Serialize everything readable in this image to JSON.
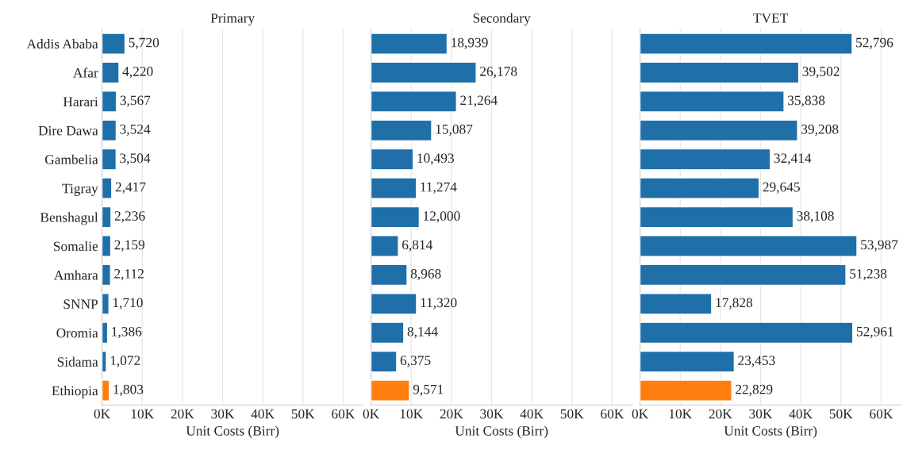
{
  "chart_data": [
    {
      "type": "bar",
      "orientation": "horizontal",
      "title": "Primary",
      "xlabel": "Unit Costs (Birr)",
      "categories": [
        "Addis Ababa",
        "Afar",
        "Harari",
        "Dire Dawa",
        "Gambelia",
        "Tigray",
        "Benshagul",
        "Somalie",
        "Amhara",
        "SNNP",
        "Oromia",
        "Sidama",
        "Ethiopia"
      ],
      "values": [
        5720,
        4220,
        3567,
        3524,
        3504,
        2417,
        2236,
        2159,
        2112,
        1710,
        1386,
        1072,
        1803
      ],
      "value_labels": [
        "5,720",
        "4,220",
        "3,567",
        "3,524",
        "3,504",
        "2,417",
        "2,236",
        "2,159",
        "2,112",
        "1,710",
        "1,386",
        "1,072",
        "1,803"
      ],
      "colors": [
        "#1f6fa8",
        "#1f6fa8",
        "#1f6fa8",
        "#1f6fa8",
        "#1f6fa8",
        "#1f6fa8",
        "#1f6fa8",
        "#1f6fa8",
        "#1f6fa8",
        "#1f6fa8",
        "#1f6fa8",
        "#1f6fa8",
        "#ff7f0e"
      ],
      "xlim": [
        0,
        65000
      ],
      "xticks": [
        {
          "value": 0,
          "label": "0K"
        },
        {
          "value": 10000,
          "label": "10K"
        },
        {
          "value": 20000,
          "label": "20K"
        },
        {
          "value": 30000,
          "label": "30K"
        },
        {
          "value": 40000,
          "label": "40K"
        },
        {
          "value": 50000,
          "label": "50K"
        },
        {
          "value": 60000,
          "label": "60K"
        }
      ],
      "grid": "x"
    },
    {
      "type": "bar",
      "orientation": "horizontal",
      "title": "Secondary",
      "xlabel": "Unit Costs (Birr)",
      "categories": [
        null,
        null,
        null,
        null,
        null,
        null,
        null,
        null,
        null,
        null,
        null,
        null,
        null
      ],
      "values": [
        18939,
        26178,
        21264,
        15087,
        10493,
        11274,
        12000,
        6814,
        8968,
        11320,
        8144,
        6375,
        9571
      ],
      "value_labels": [
        "18,939",
        "26,178",
        "21,264",
        "15,087",
        "10,493",
        "11,274",
        "12,000",
        "6,814",
        "8,968",
        "11,320",
        "8,144",
        "6,375",
        "9,571"
      ],
      "colors": [
        "#1f6fa8",
        "#1f6fa8",
        "#1f6fa8",
        "#1f6fa8",
        "#1f6fa8",
        "#1f6fa8",
        "#1f6fa8",
        "#1f6fa8",
        "#1f6fa8",
        "#1f6fa8",
        "#1f6fa8",
        "#1f6fa8",
        "#ff7f0e"
      ],
      "xlim": [
        0,
        65000
      ],
      "xticks": [
        {
          "value": 0,
          "label": "0K"
        },
        {
          "value": 10000,
          "label": "10K"
        },
        {
          "value": 20000,
          "label": "20K"
        },
        {
          "value": 30000,
          "label": "30K"
        },
        {
          "value": 40000,
          "label": "40K"
        },
        {
          "value": 50000,
          "label": "50K"
        },
        {
          "value": 60000,
          "label": "60K"
        }
      ],
      "grid": "x",
      "tick_labels": "x"
    },
    {
      "type": "bar",
      "orientation": "horizontal",
      "title": "TVET",
      "xlabel": "Unit Costs (Birr)",
      "categories": [
        null,
        null,
        null,
        null,
        null,
        null,
        null,
        null,
        null,
        null,
        null,
        null,
        null
      ],
      "values": [
        52796,
        39502,
        35838,
        39208,
        32414,
        29645,
        38108,
        53987,
        51238,
        17828,
        52961,
        23453,
        22829
      ],
      "value_labels": [
        "52,796",
        "39,502",
        "35,838",
        "39,208",
        "32,414",
        "29,645",
        "38,108",
        "53,987",
        "51,238",
        "17,828",
        "52,961",
        "23,453",
        "22,829"
      ],
      "colors": [
        "#1f6fa8",
        "#1f6fa8",
        "#1f6fa8",
        "#1f6fa8",
        "#1f6fa8",
        "#1f6fa8",
        "#1f6fa8",
        "#1f6fa8",
        "#1f6fa8",
        "#1f6fa8",
        "#1f6fa8",
        "#1f6fa8",
        "#ff7f0e"
      ],
      "xlim": [
        0,
        65000
      ],
      "xticks": [
        {
          "value": 0,
          "label": "0K"
        },
        {
          "value": 10000,
          "label": "10K"
        },
        {
          "value": 20000,
          "label": "20K"
        },
        {
          "value": 30000,
          "label": "30K"
        },
        {
          "value": 40000,
          "label": "40K"
        },
        {
          "value": 50000,
          "label": "50K"
        },
        {
          "value": 60000,
          "label": "60K"
        }
      ],
      "grid": "x",
      "tick_labels": "x"
    }
  ]
}
